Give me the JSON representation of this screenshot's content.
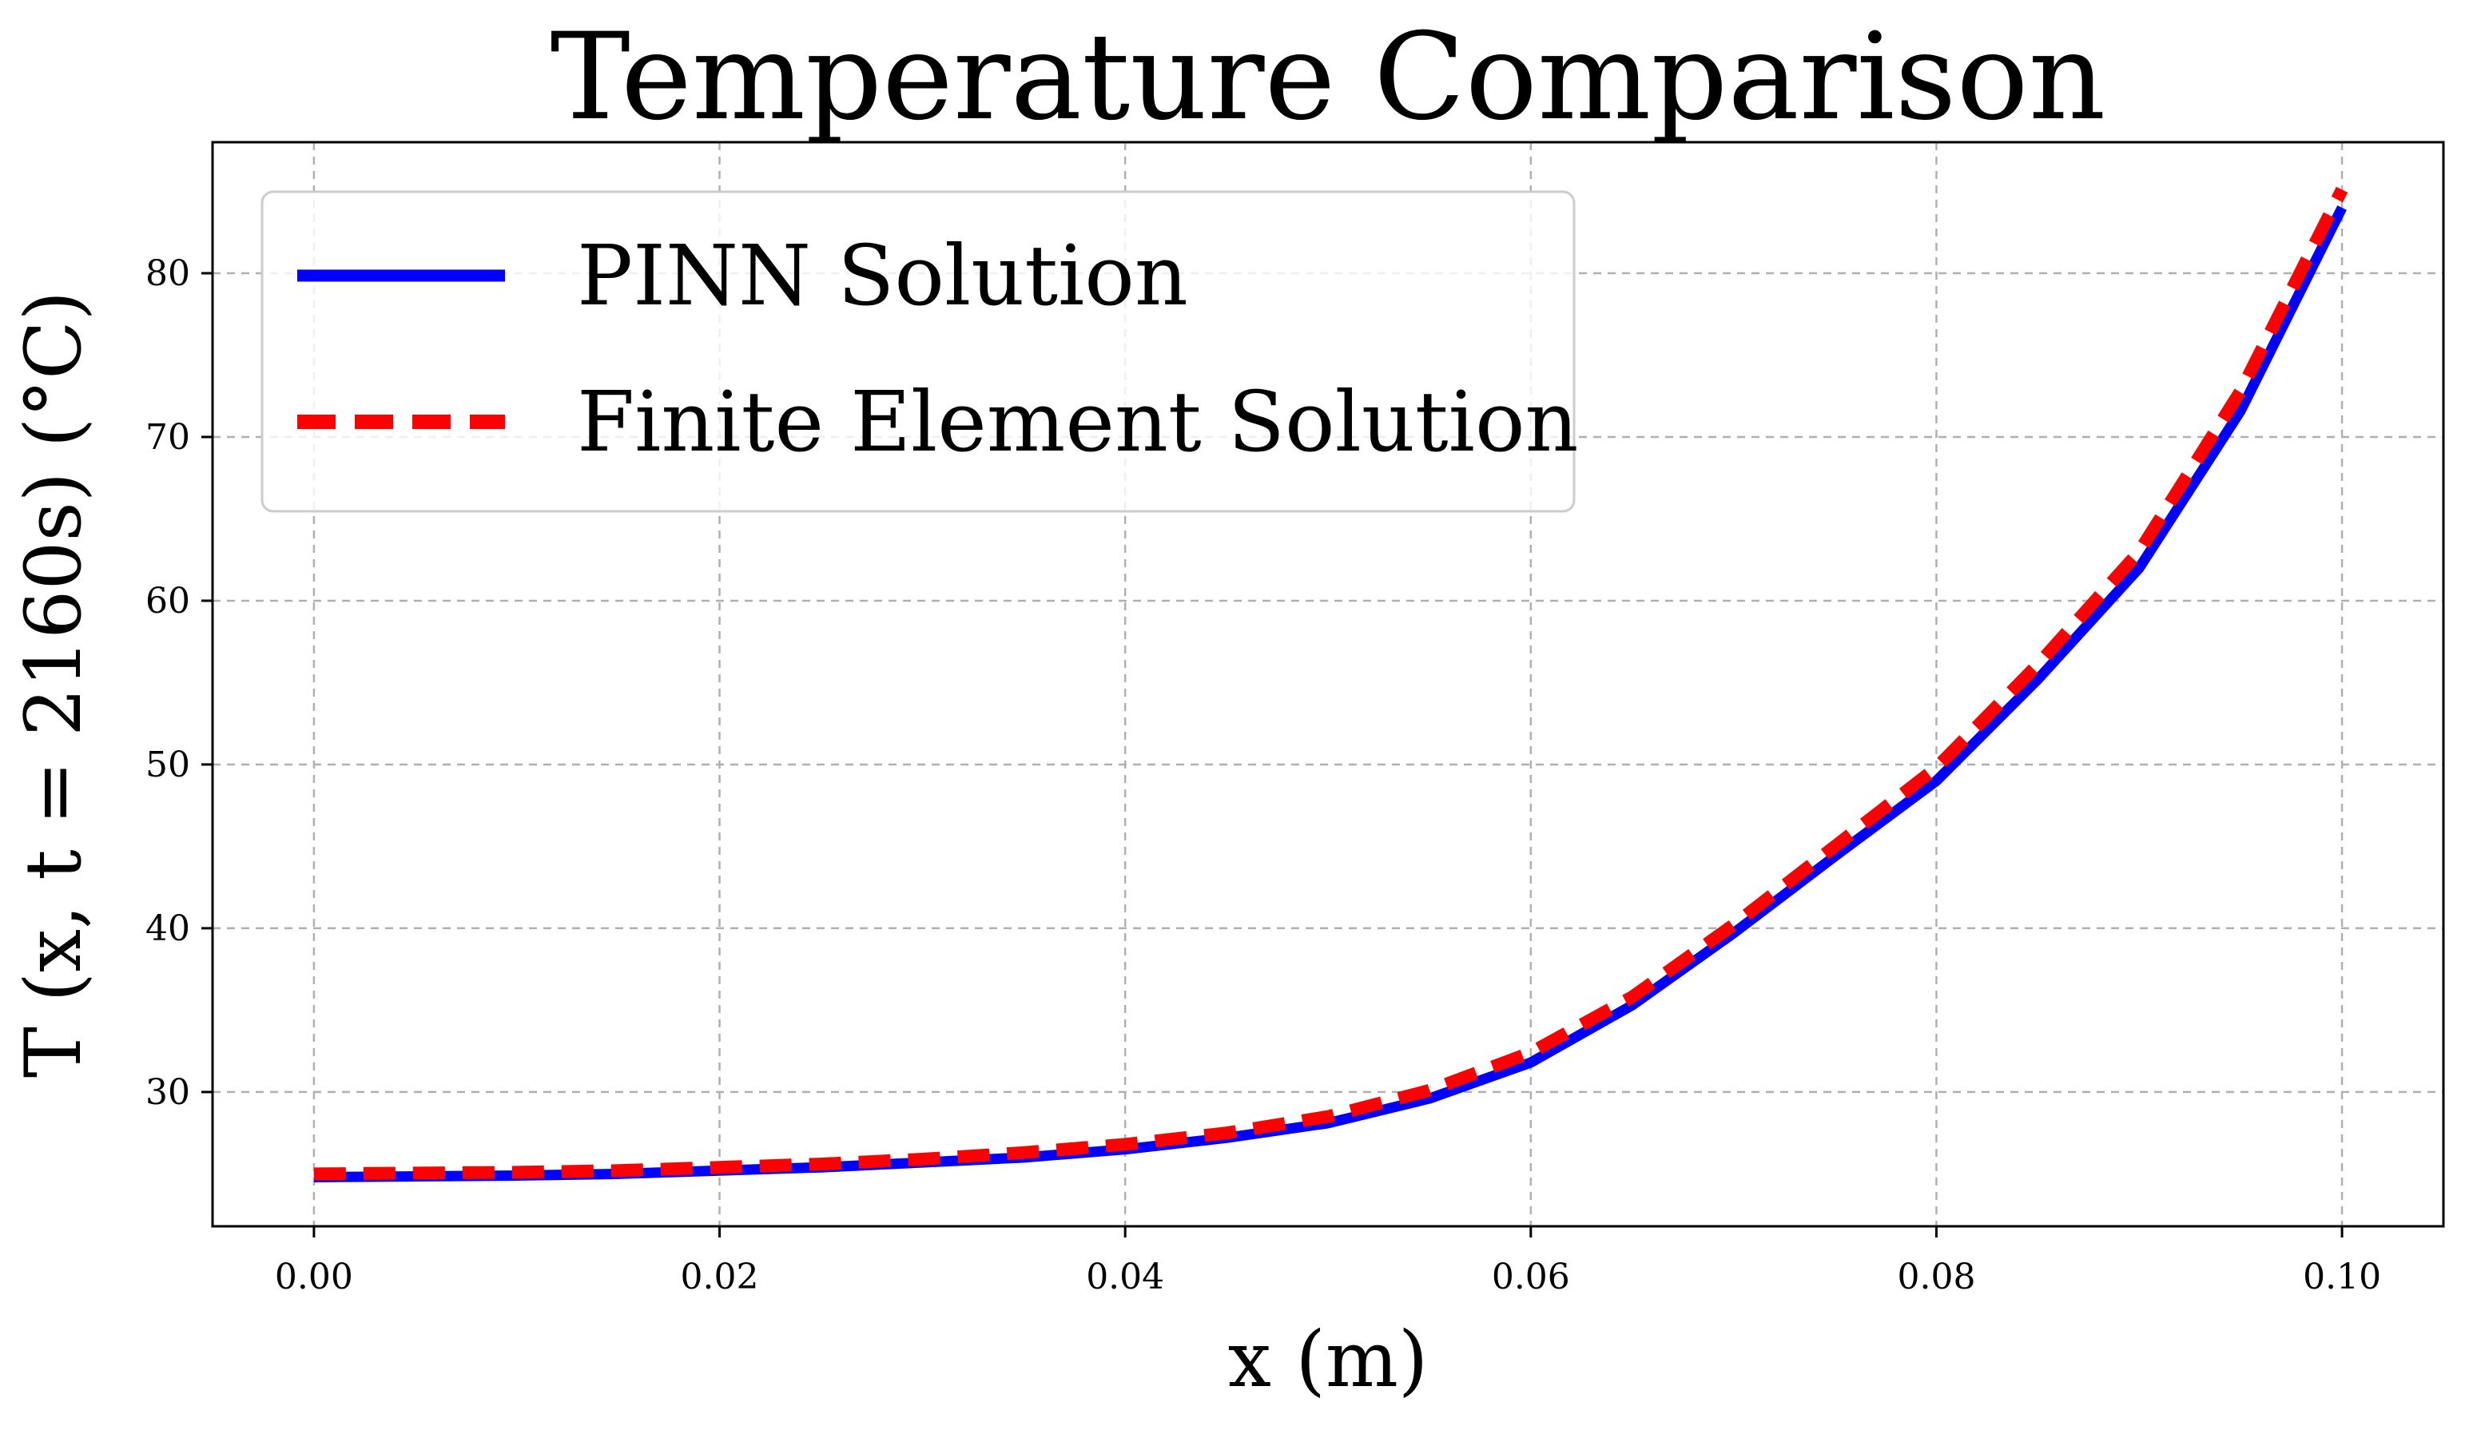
{
  "chart_data": {
    "type": "line",
    "title": "Temperature Comparison",
    "xlabel": "x (m)",
    "ylabel": "T (x, t = 2160s) (°C)",
    "xlim": [
      -0.005,
      0.105
    ],
    "ylim": [
      21.8,
      88
    ],
    "xticks": [
      0.0,
      0.02,
      0.04,
      0.06,
      0.08,
      0.1
    ],
    "xtick_labels": [
      "0.00",
      "0.02",
      "0.04",
      "0.06",
      "0.08",
      "0.10"
    ],
    "yticks": [
      30,
      40,
      50,
      60,
      70,
      80
    ],
    "ytick_labels": [
      "30",
      "40",
      "50",
      "60",
      "70",
      "80"
    ],
    "grid": true,
    "legend_position": "top-left",
    "x": [
      0.0,
      0.005,
      0.01,
      0.015,
      0.02,
      0.025,
      0.03,
      0.035,
      0.04,
      0.045,
      0.05,
      0.055,
      0.06,
      0.065,
      0.07,
      0.075,
      0.08,
      0.085,
      0.09,
      0.095,
      0.1
    ],
    "series": [
      {
        "name": "PINN Solution",
        "color": "#0000ff",
        "style": "solid",
        "values": [
          24.8,
          24.85,
          24.9,
          25.0,
          25.2,
          25.4,
          25.7,
          26.0,
          26.5,
          27.2,
          28.1,
          29.6,
          31.8,
          35.3,
          39.7,
          44.4,
          49.0,
          55.2,
          62.0,
          71.6,
          84.0
        ]
      },
      {
        "name": "Finite Element Solution",
        "color": "#ff0000",
        "style": "dashed",
        "values": [
          25.0,
          25.05,
          25.1,
          25.2,
          25.4,
          25.6,
          25.9,
          26.3,
          26.8,
          27.5,
          28.5,
          30.1,
          32.4,
          35.8,
          40.2,
          45.0,
          49.8,
          56.1,
          63.0,
          72.8,
          85.1
        ]
      }
    ]
  }
}
